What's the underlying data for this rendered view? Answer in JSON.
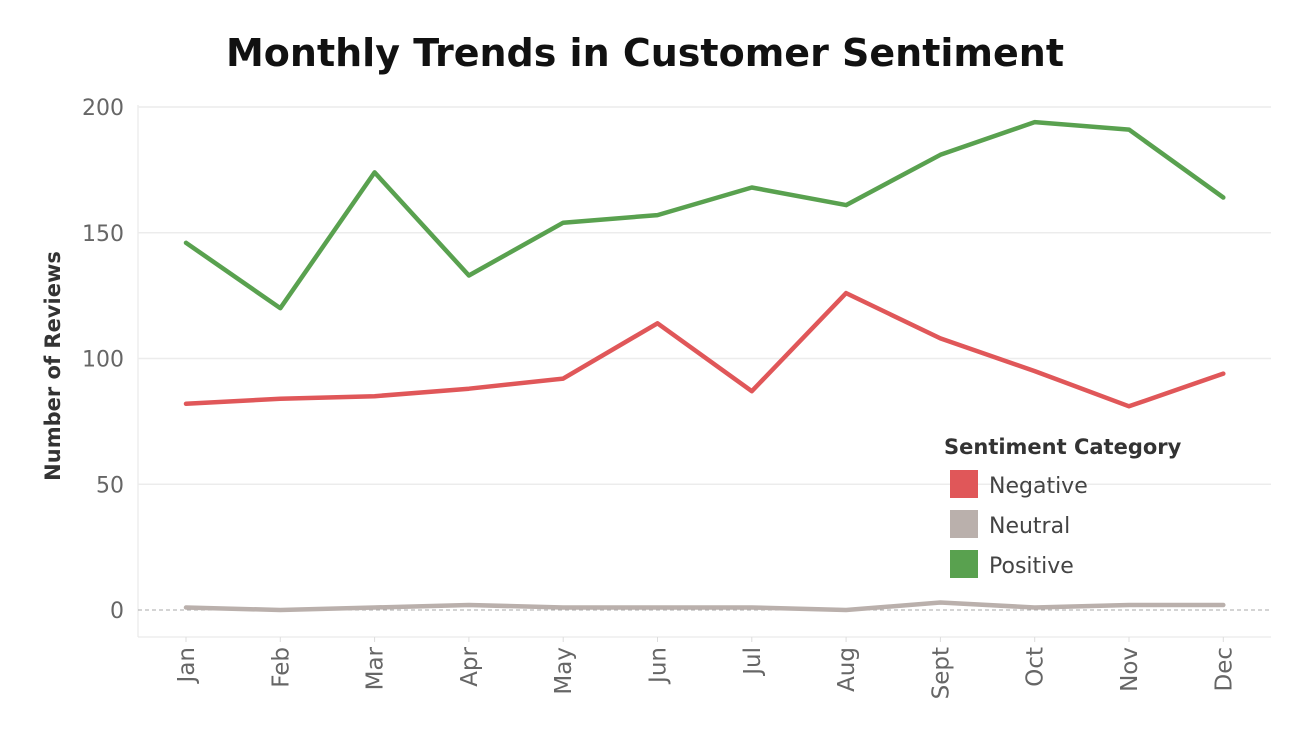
{
  "chart_data": {
    "type": "line",
    "title": "Monthly Trends in Customer Sentiment",
    "xlabel": "",
    "ylabel": "Number of Reviews",
    "categories": [
      "Jan",
      "Feb",
      "Mar",
      "Apr",
      "May",
      "Jun",
      "Jul",
      "Aug",
      "Sept",
      "Oct",
      "Nov",
      "Dec"
    ],
    "ylim": [
      0,
      200
    ],
    "yticks": [
      "0",
      "50",
      "100",
      "150",
      "200"
    ],
    "grid": true,
    "legend": {
      "title": "Sentiment Category",
      "placement": "bottom-right"
    },
    "series": [
      {
        "name": "Negative",
        "color": "#e05759",
        "values": [
          82,
          84,
          85,
          88,
          92,
          114,
          87,
          126,
          108,
          95,
          81,
          94
        ]
      },
      {
        "name": "Neutral",
        "color": "#bab0ac",
        "values": [
          1,
          0,
          1,
          2,
          1,
          1,
          1,
          0,
          3,
          1,
          2,
          2
        ]
      },
      {
        "name": "Positive",
        "color": "#59a14f",
        "values": [
          146,
          120,
          174,
          133,
          154,
          157,
          168,
          161,
          181,
          194,
          191,
          164
        ]
      }
    ]
  }
}
